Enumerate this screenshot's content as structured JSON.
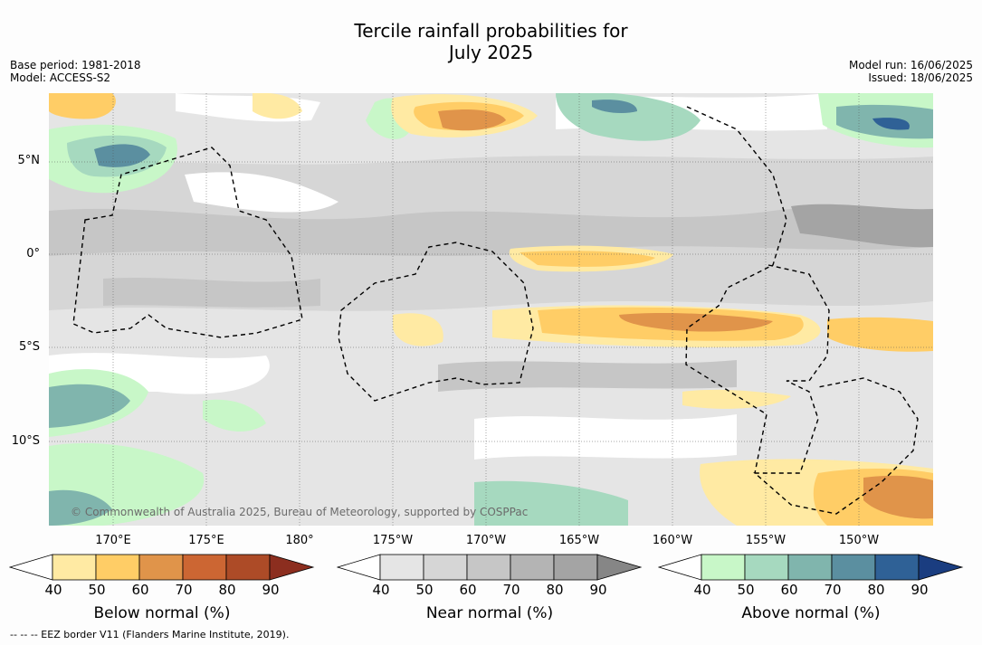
{
  "title": {
    "line1": "Tercile rainfall probabilities for",
    "line2": "July 2025"
  },
  "meta_left": {
    "base_period": "Base period: 1981-2018",
    "model": "Model: ACCESS-S2"
  },
  "meta_right": {
    "model_run": "Model run: 16/06/2025",
    "issued": "Issued: 18/06/2025"
  },
  "lat_labels": [
    "5°N",
    "0°",
    "5°S",
    "10°S"
  ],
  "lon_labels": [
    "170°E",
    "175°E",
    "180°",
    "175°W",
    "170°W",
    "165°W",
    "160°W",
    "155°W",
    "150°W"
  ],
  "credit": "© Commonwealth of Australia 2025, Bureau of Meteorology, supported by COSPPac",
  "colorbars": [
    {
      "title": "Below normal (%)",
      "ticks": [
        "40",
        "50",
        "60",
        "70",
        "80",
        "90"
      ],
      "colors": [
        "#ffffff",
        "#ffeaa3",
        "#ffcd66",
        "#e0944a",
        "#cc6633",
        "#ad4b27",
        "#8c2e1f"
      ]
    },
    {
      "title": "Near normal (%)",
      "ticks": [
        "40",
        "50",
        "60",
        "70",
        "80",
        "90"
      ],
      "colors": [
        "#ffffff",
        "#e5e5e5",
        "#d6d6d6",
        "#c6c6c6",
        "#b4b4b4",
        "#a4a4a4",
        "#868686"
      ]
    },
    {
      "title": "Above normal (%)",
      "ticks": [
        "40",
        "50",
        "60",
        "70",
        "80",
        "90"
      ],
      "colors": [
        "#ffffff",
        "#c8f7c8",
        "#a6d9bf",
        "#80b5ad",
        "#5b8fa0",
        "#2f6196",
        "#1a3d80"
      ]
    }
  ],
  "footnote": "--  --  -- EEZ border V11 (Flanders Marine Institute, 2019)."
}
